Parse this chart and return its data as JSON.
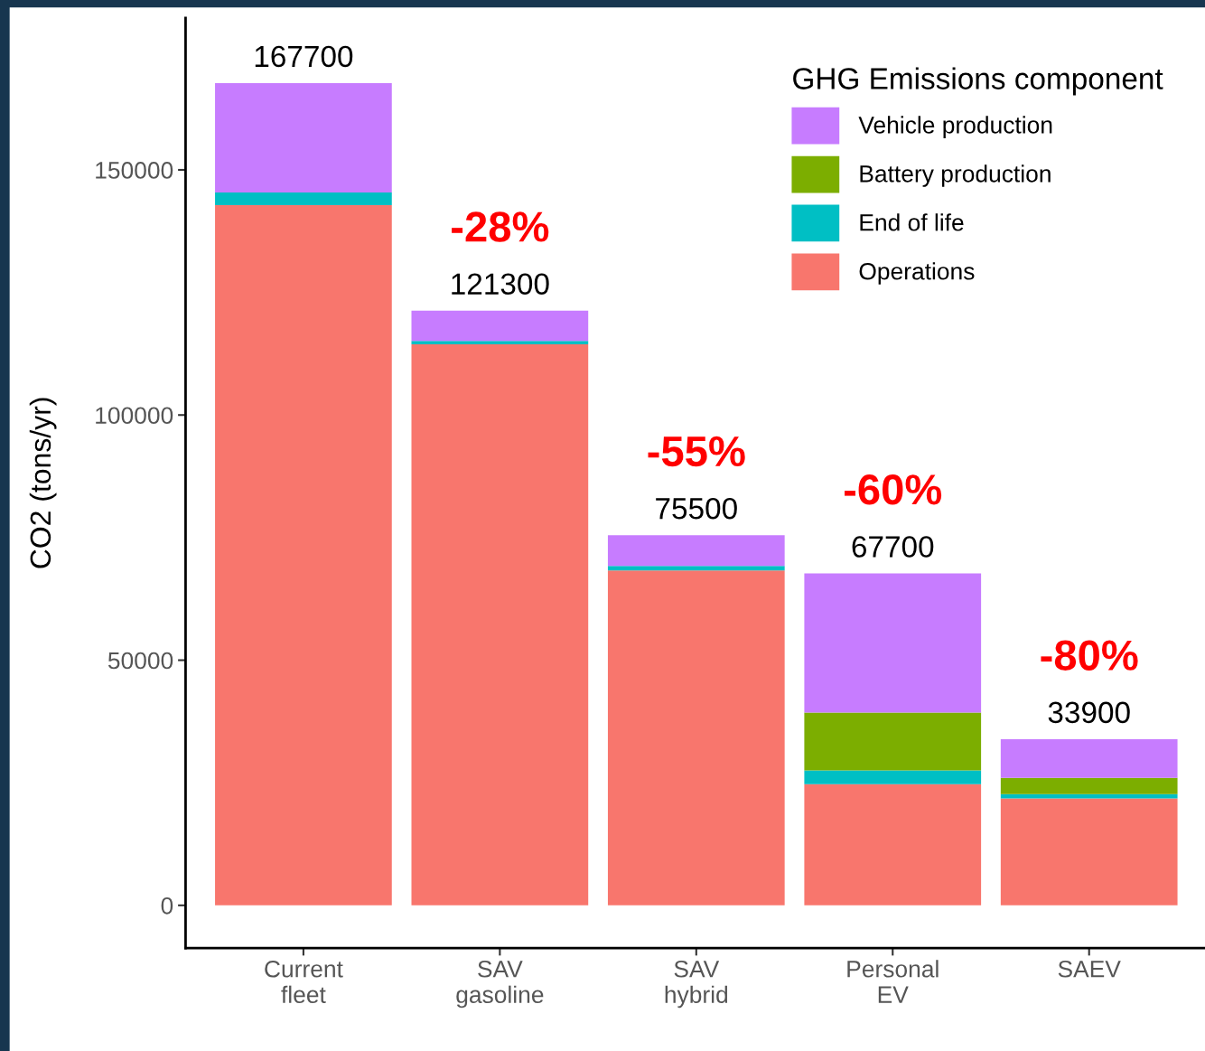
{
  "chart_data": {
    "type": "bar",
    "stacked": true,
    "categories": [
      "Current\nfleet",
      "SAV\ngasoline",
      "SAV\nhybrid",
      "Personal\nEV",
      "SAEV"
    ],
    "series": [
      {
        "name": "Operations",
        "color": "#f8766d",
        "values": [
          142800,
          114400,
          68300,
          24700,
          21800
        ]
      },
      {
        "name": "End of life",
        "color": "#00bfc4",
        "values": [
          2600,
          700,
          900,
          2800,
          900
        ]
      },
      {
        "name": "Battery production",
        "color": "#7cae00",
        "values": [
          0,
          0,
          0,
          11800,
          3300
        ]
      },
      {
        "name": "Vehicle production",
        "color": "#c77cff",
        "values": [
          22300,
          6200,
          6300,
          28400,
          7900
        ]
      }
    ],
    "totals": [
      "167700",
      "121300",
      "75500",
      "67700",
      "33900"
    ],
    "ylabel": "CO2 (tons/yr)",
    "legend_title": "GHG Emissions component",
    "ylim": [
      -8700,
      181000
    ],
    "yticks": [
      0,
      50000,
      100000,
      150000
    ],
    "annotations": [
      "-28%",
      "-55%",
      "-60%",
      "-80%"
    ],
    "legend": "top right",
    "grid": false
  }
}
